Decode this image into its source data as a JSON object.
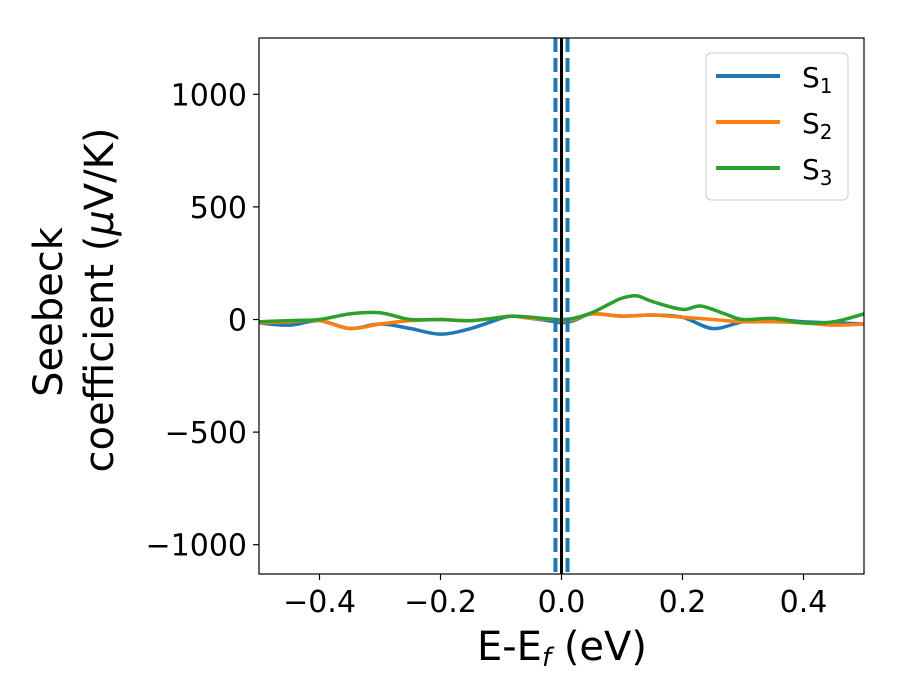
{
  "chart_data": {
    "type": "line",
    "title": "",
    "xlabel": {
      "main": "E-E",
      "sub": "f",
      "unit": " (eV)"
    },
    "ylabel": {
      "line1": "Seebeck",
      "line2_a": "coefficient  (",
      "line2_mu": "μ",
      "line2_b": "V/K)"
    },
    "xlim": [
      -0.5,
      0.5
    ],
    "ylim": [
      -1130,
      1250
    ],
    "x_ticks": [
      -0.4,
      -0.2,
      0.0,
      0.2,
      0.4
    ],
    "x_tick_labels": [
      "−0.4",
      "−0.2",
      "0.0",
      "0.2",
      "0.4"
    ],
    "y_ticks": [
      -1000,
      -500,
      0,
      500,
      1000
    ],
    "y_tick_labels": [
      "−1000",
      "−500",
      "0",
      "500",
      "1000"
    ],
    "grid": false,
    "legend_position": "top-right",
    "vertical_lines": [
      {
        "x": 0.0,
        "style": "solid",
        "color": "#000000"
      },
      {
        "x": -0.01,
        "style": "dashed",
        "color": "#1f77b4"
      },
      {
        "x": 0.01,
        "style": "dashed",
        "color": "#1f77b4"
      }
    ],
    "series": [
      {
        "name": "S",
        "name_sub": "1",
        "color": "#1f77b4",
        "x": [
          -0.5,
          -0.45,
          -0.4,
          -0.35,
          -0.3,
          -0.25,
          -0.2,
          -0.15,
          -0.1,
          -0.08,
          -0.05,
          -0.01,
          0.0,
          0.02,
          0.05,
          0.1,
          0.15,
          0.2,
          0.25,
          0.3,
          0.35,
          0.4,
          0.45,
          0.5
        ],
        "values": [
          -15,
          -25,
          -5,
          -40,
          -20,
          -40,
          -65,
          -40,
          5,
          15,
          5,
          -10,
          -15,
          -5,
          25,
          15,
          20,
          10,
          -40,
          -10,
          0,
          -10,
          -15,
          -20
        ]
      },
      {
        "name": "S",
        "name_sub": "2",
        "color": "#ff7f0e",
        "x": [
          -0.5,
          -0.45,
          -0.4,
          -0.35,
          -0.3,
          -0.25,
          -0.2,
          -0.15,
          -0.1,
          -0.08,
          -0.05,
          -0.01,
          0.0,
          0.02,
          0.05,
          0.1,
          0.15,
          0.2,
          0.25,
          0.3,
          0.35,
          0.4,
          0.45,
          0.5
        ],
        "values": [
          -15,
          -10,
          -5,
          -40,
          -20,
          -5,
          0,
          -5,
          10,
          15,
          5,
          0,
          -5,
          0,
          25,
          15,
          20,
          10,
          0,
          -10,
          -10,
          -15,
          -25,
          -20
        ]
      },
      {
        "name": "S",
        "name_sub": "3",
        "color": "#2ca02c",
        "x": [
          -0.5,
          -0.45,
          -0.4,
          -0.35,
          -0.3,
          -0.25,
          -0.2,
          -0.15,
          -0.1,
          -0.08,
          -0.05,
          -0.01,
          0.0,
          0.02,
          0.05,
          0.08,
          0.1,
          0.125,
          0.15,
          0.2,
          0.23,
          0.27,
          0.3,
          0.35,
          0.4,
          0.45,
          0.5
        ],
        "values": [
          -10,
          -5,
          0,
          25,
          30,
          0,
          0,
          -5,
          10,
          15,
          10,
          0,
          0,
          5,
          30,
          70,
          95,
          105,
          80,
          45,
          60,
          25,
          0,
          5,
          -15,
          -10,
          25
        ]
      }
    ]
  }
}
